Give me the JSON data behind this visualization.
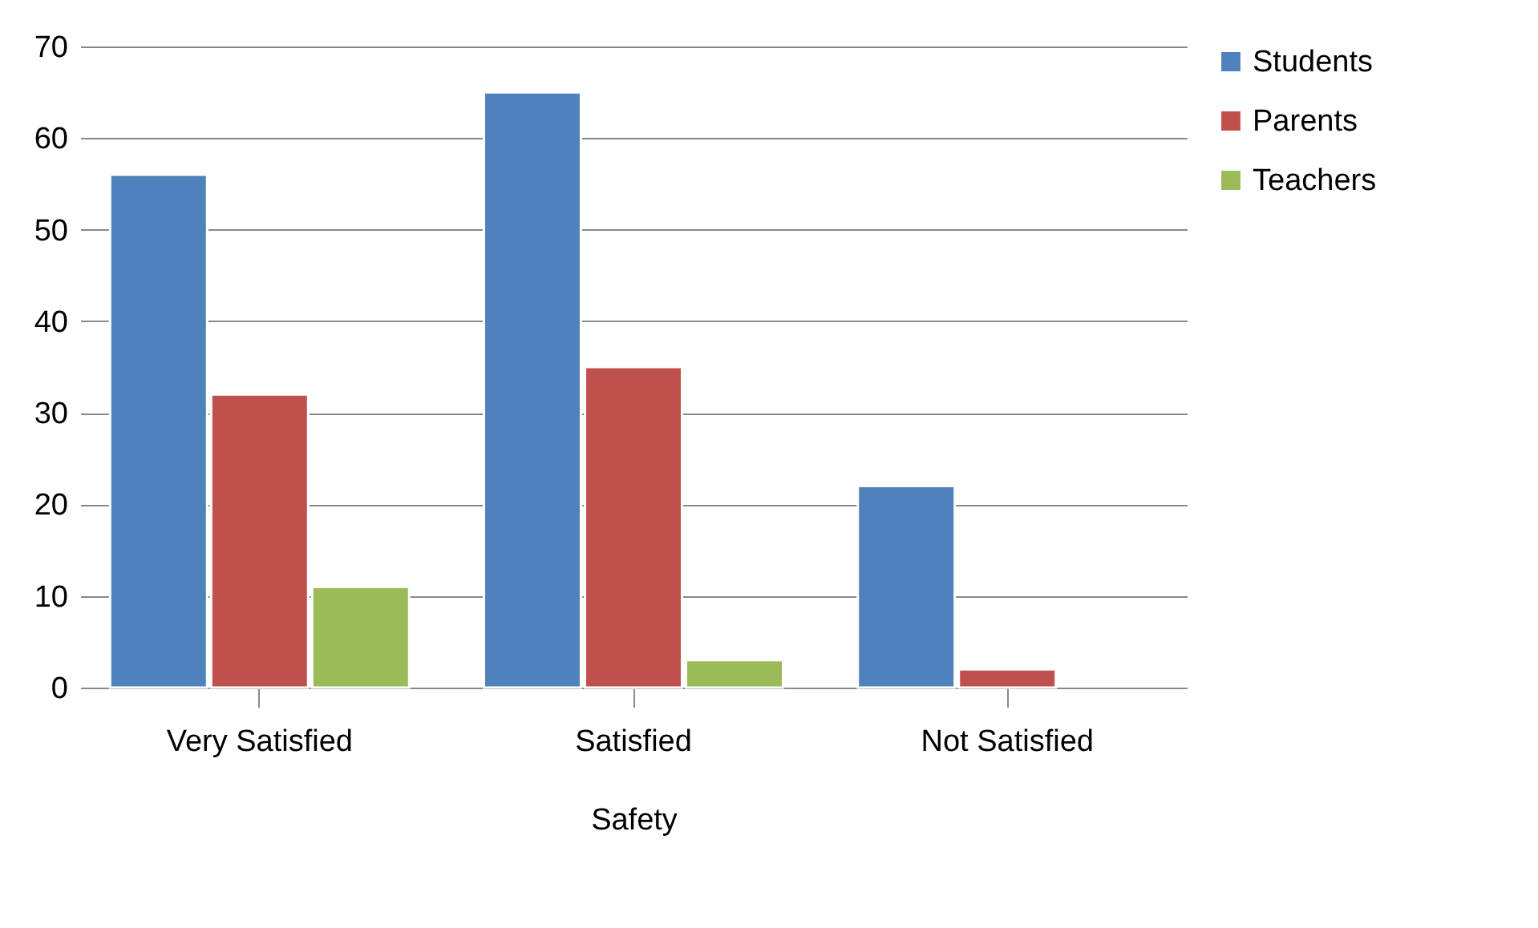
{
  "chart_data": {
    "type": "bar",
    "xlabel": "Safety",
    "categories": [
      "Very Satisfied",
      "Satisfied",
      "Not Satisfied"
    ],
    "series": [
      {
        "name": "Students",
        "color": "#4f81bd",
        "values": [
          56,
          65,
          22
        ]
      },
      {
        "name": "Parents",
        "color": "#c0504d",
        "values": [
          32,
          35,
          2
        ]
      },
      {
        "name": "Teachers",
        "color": "#9bbb59",
        "values": [
          11,
          3,
          null
        ]
      }
    ],
    "ylim": [
      0,
      70
    ],
    "yticks": [
      0,
      10,
      20,
      30,
      40,
      50,
      60,
      70
    ],
    "grid": "y",
    "legend": "right"
  }
}
